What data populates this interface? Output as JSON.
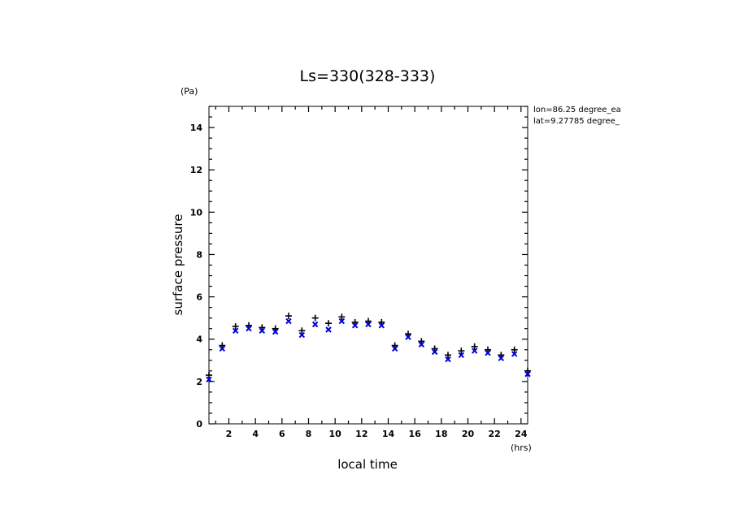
{
  "chart_data": {
    "type": "scatter",
    "title": "Ls=330(328-333)",
    "xlabel": "local time",
    "ylabel": "surface pressure",
    "xunit": "(hrs)",
    "yunit": "(Pa)",
    "annotations": [
      "lon=86.25 degree_ea",
      "lat=9.27785 degree_"
    ],
    "xlim": [
      0.5,
      24.5
    ],
    "ylim": [
      0,
      15
    ],
    "xticks": [
      2,
      4,
      6,
      8,
      10,
      12,
      14,
      16,
      18,
      20,
      22,
      24
    ],
    "yticks": [
      0,
      2,
      4,
      6,
      8,
      10,
      12,
      14
    ],
    "x": [
      0.5,
      1.5,
      2.5,
      3.5,
      4.5,
      5.5,
      6.5,
      7.5,
      8.5,
      9.5,
      10.5,
      11.5,
      12.5,
      13.5,
      14.5,
      15.5,
      16.5,
      17.5,
      18.5,
      19.5,
      20.5,
      21.5,
      22.5,
      23.5,
      24.5
    ],
    "series": [
      {
        "marker": "plus",
        "color": "#000000",
        "values": [
          2.3,
          3.7,
          4.6,
          4.65,
          4.55,
          4.5,
          5.1,
          4.4,
          5.0,
          4.75,
          5.05,
          4.8,
          4.85,
          4.8,
          3.7,
          4.25,
          3.9,
          3.55,
          3.25,
          3.45,
          3.65,
          3.5,
          3.25,
          3.5,
          2.5
        ]
      },
      {
        "marker": "x",
        "color": "#0000dd",
        "values": [
          2.1,
          3.55,
          4.4,
          4.5,
          4.4,
          4.35,
          4.85,
          4.2,
          4.7,
          4.45,
          4.85,
          4.65,
          4.7,
          4.65,
          3.55,
          4.1,
          3.75,
          3.4,
          3.05,
          3.25,
          3.45,
          3.35,
          3.1,
          3.3,
          2.35
        ]
      }
    ]
  }
}
